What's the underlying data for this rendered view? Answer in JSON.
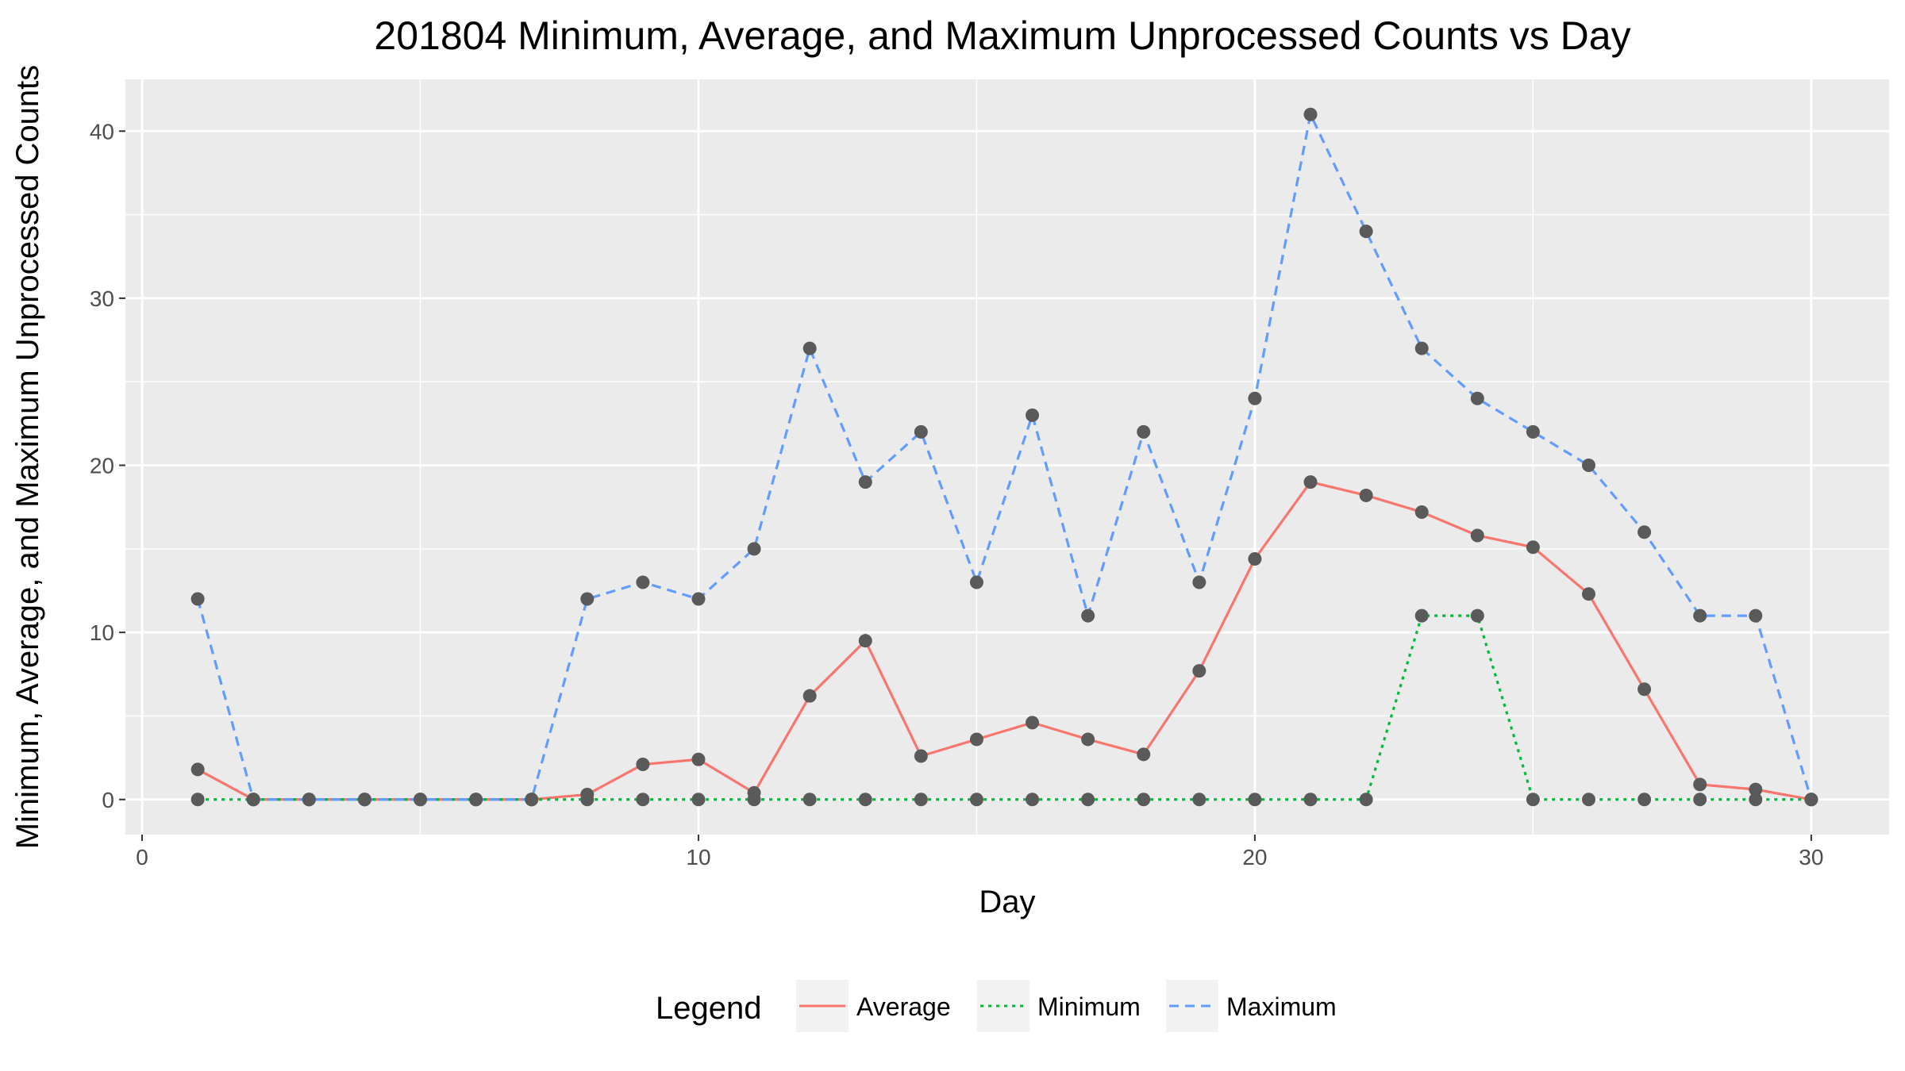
{
  "chart_data": {
    "type": "line",
    "title": "201804 Minimum, Average, and Maximum Unprocessed Counts vs Day",
    "xlabel": "Day",
    "ylabel": "Minimum, Average, and Maximum Unprocessed Counts",
    "xlim": [
      -0.3,
      31.4
    ],
    "ylim": [
      -2.1,
      43.1
    ],
    "x_ticks": [
      0,
      10,
      20,
      30
    ],
    "y_ticks": [
      0,
      10,
      20,
      30,
      40
    ],
    "grid": true,
    "legend": {
      "title": "Legend",
      "position": "bottom",
      "entries": [
        "Average",
        "Minimum",
        "Maximum"
      ]
    },
    "x": [
      1,
      2,
      3,
      4,
      5,
      6,
      7,
      8,
      9,
      10,
      11,
      12,
      13,
      14,
      15,
      16,
      17,
      18,
      19,
      20,
      21,
      22,
      23,
      24,
      25,
      26,
      27,
      28,
      29,
      30
    ],
    "series": [
      {
        "name": "Average",
        "color": "#F8766D",
        "dash": "solid",
        "values": [
          1.8,
          0,
          0,
          0,
          0,
          0,
          0,
          0.3,
          2.1,
          2.4,
          0.4,
          6.2,
          9.5,
          2.6,
          3.6,
          4.6,
          3.6,
          2.7,
          7.7,
          14.4,
          19.0,
          18.2,
          17.2,
          15.8,
          15.1,
          12.3,
          6.6,
          0.9,
          0.6,
          0
        ]
      },
      {
        "name": "Minimum",
        "color": "#00BA38",
        "dash": "dotted",
        "values": [
          0,
          0,
          0,
          0,
          0,
          0,
          0,
          0,
          0,
          0,
          0,
          0,
          0,
          0,
          0,
          0,
          0,
          0,
          0,
          0,
          0,
          0,
          11,
          11,
          0,
          0,
          0,
          0,
          0,
          0
        ]
      },
      {
        "name": "Maximum",
        "color": "#619CFF",
        "dash": "dashed",
        "values": [
          12,
          0,
          0,
          0,
          0,
          0,
          0,
          12,
          13,
          12,
          15,
          27,
          19,
          22,
          13,
          23,
          11,
          22,
          13,
          24,
          41,
          34,
          27,
          24,
          22,
          20,
          16,
          11,
          11,
          0
        ]
      }
    ]
  }
}
